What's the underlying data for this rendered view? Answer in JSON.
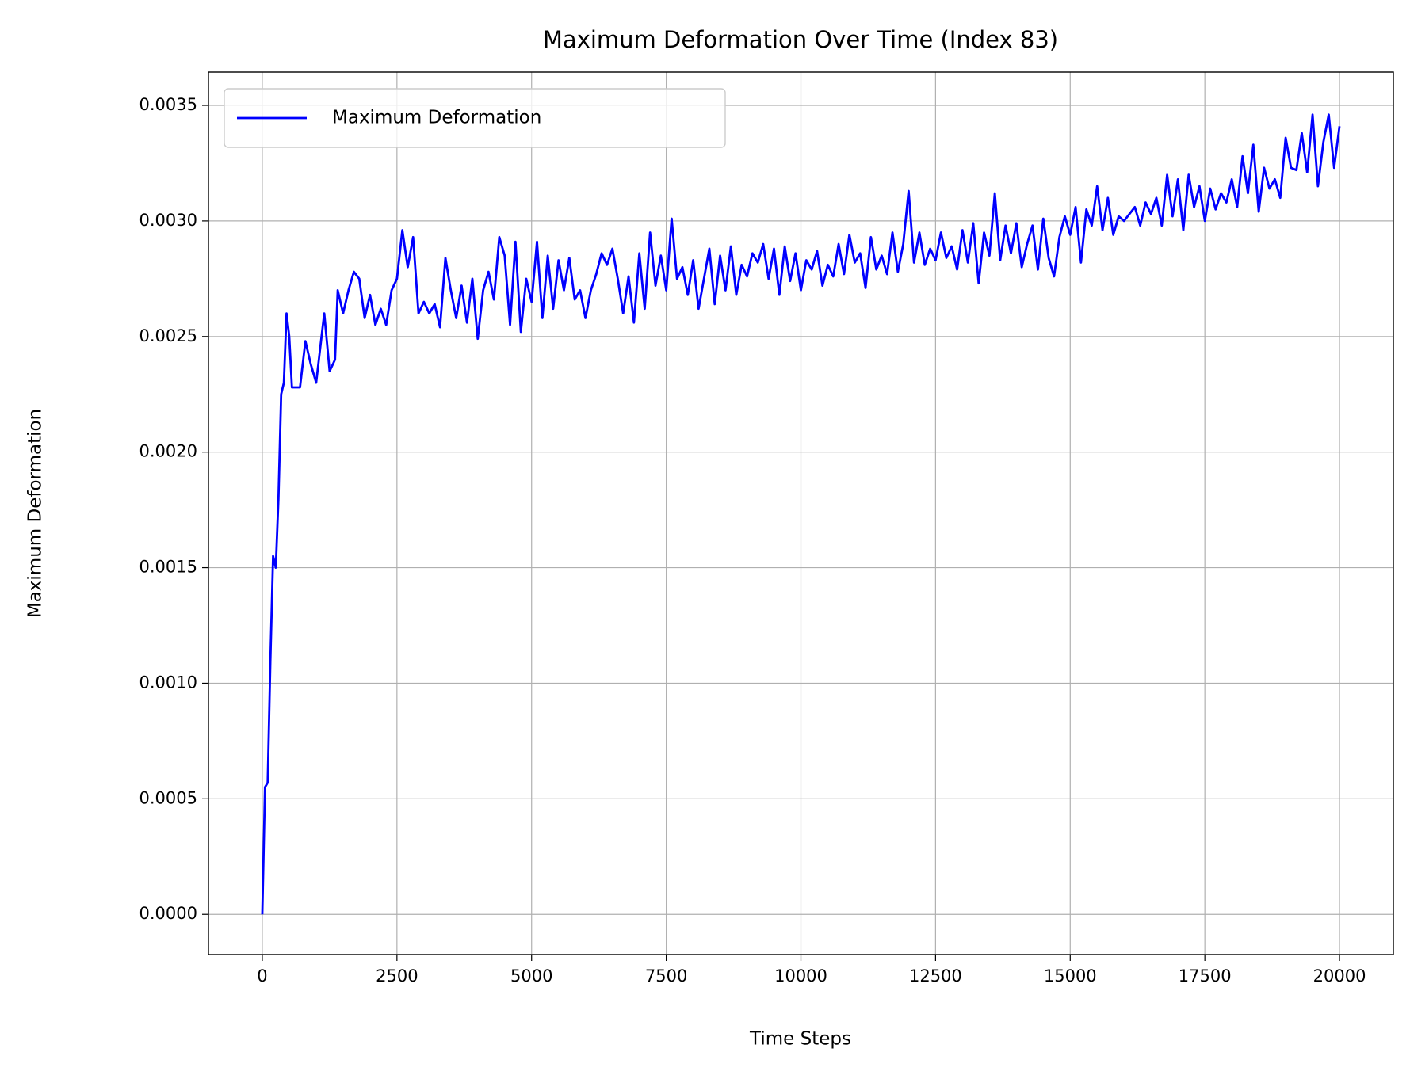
{
  "chart_data": {
    "type": "line",
    "title": "Maximum Deformation Over Time (Index 83)",
    "x_label": "Time Steps",
    "y_label": "Maximum Deformation",
    "xlim": [
      -1000,
      21000
    ],
    "ylim": [
      -0.000174,
      0.003644
    ],
    "xticks": [
      0,
      2500,
      5000,
      7500,
      10000,
      12500,
      15000,
      17500,
      20000
    ],
    "yticks": [
      {
        "value": 0,
        "label": "0.0000"
      },
      {
        "value": 0.0005,
        "label": "0.0005"
      },
      {
        "value": 0.001,
        "label": "0.0010"
      },
      {
        "value": 0.0015,
        "label": "0.0015"
      },
      {
        "value": 0.002,
        "label": "0.0020"
      },
      {
        "value": 0.0025,
        "label": "0.0025"
      },
      {
        "value": 0.003,
        "label": "0.0030"
      },
      {
        "value": 0.0035,
        "label": "0.0035"
      }
    ],
    "grid": true,
    "legend": "upper left",
    "x": [
      0,
      50,
      100,
      150,
      200,
      250,
      300,
      350,
      400,
      450,
      500,
      550,
      700,
      800,
      900,
      1000,
      1100,
      1150,
      1250,
      1350,
      1400,
      1500,
      1600,
      1700,
      1800,
      1900,
      2000,
      2100,
      2200,
      2300,
      2400,
      2500,
      2600,
      2700,
      2800,
      2900,
      3000,
      3100,
      3200,
      3300,
      3400,
      3500,
      3600,
      3700,
      3800,
      3900,
      4000,
      4100,
      4200,
      4300,
      4400,
      4500,
      4600,
      4700,
      4800,
      4900,
      5000,
      5100,
      5200,
      5300,
      5400,
      5500,
      5600,
      5700,
      5800,
      5900,
      6000,
      6100,
      6200,
      6300,
      6400,
      6500,
      6600,
      6700,
      6800,
      6900,
      7000,
      7100,
      7200,
      7300,
      7400,
      7500,
      7600,
      7700,
      7800,
      7900,
      8000,
      8100,
      8200,
      8300,
      8400,
      8500,
      8600,
      8700,
      8800,
      8900,
      9000,
      9100,
      9200,
      9300,
      9400,
      9500,
      9600,
      9700,
      9800,
      9900,
      10000,
      10100,
      10200,
      10300,
      10400,
      10500,
      10600,
      10700,
      10800,
      10900,
      11000,
      11100,
      11200,
      11300,
      11400,
      11500,
      11600,
      11700,
      11800,
      11900,
      12000,
      12100,
      12200,
      12300,
      12400,
      12500,
      12600,
      12700,
      12800,
      12900,
      13000,
      13100,
      13200,
      13300,
      13400,
      13500,
      13600,
      13700,
      13800,
      13900,
      14000,
      14100,
      14200,
      14300,
      14400,
      14500,
      14600,
      14700,
      14800,
      14900,
      15000,
      15100,
      15200,
      15300,
      15400,
      15500,
      15600,
      15700,
      15800,
      15900,
      16000,
      16100,
      16200,
      16300,
      16400,
      16500,
      16600,
      16700,
      16800,
      16900,
      17000,
      17100,
      17200,
      17300,
      17400,
      17500,
      17600,
      17700,
      17800,
      17900,
      18000,
      18100,
      18200,
      18300,
      18400,
      18500,
      18600,
      18700,
      18800,
      18900,
      19000,
      19100,
      19200,
      19300,
      19400,
      19500,
      19600,
      19700,
      19800,
      19900,
      20000
    ],
    "series": [
      {
        "name": "Maximum Deformation",
        "color": "#0000ff",
        "values": [
          0,
          0.00055,
          0.00057,
          0.0011,
          0.00155,
          0.0015,
          0.0018,
          0.00225,
          0.0023,
          0.0026,
          0.0025,
          0.00228,
          0.00228,
          0.00248,
          0.00238,
          0.0023,
          0.0025,
          0.0026,
          0.00235,
          0.0024,
          0.0027,
          0.0026,
          0.0027,
          0.00278,
          0.00275,
          0.00258,
          0.00268,
          0.00255,
          0.00262,
          0.00255,
          0.0027,
          0.00275,
          0.00296,
          0.0028,
          0.00293,
          0.0026,
          0.00265,
          0.0026,
          0.00264,
          0.00254,
          0.00284,
          0.0027,
          0.00258,
          0.00272,
          0.00256,
          0.00275,
          0.00249,
          0.0027,
          0.00278,
          0.00266,
          0.00293,
          0.00285,
          0.00255,
          0.00291,
          0.00252,
          0.00275,
          0.00265,
          0.00291,
          0.00258,
          0.00285,
          0.00262,
          0.00283,
          0.0027,
          0.00284,
          0.00266,
          0.0027,
          0.00258,
          0.0027,
          0.00277,
          0.00286,
          0.00281,
          0.00288,
          0.00275,
          0.0026,
          0.00276,
          0.00256,
          0.00286,
          0.00262,
          0.00295,
          0.00272,
          0.00285,
          0.0027,
          0.00301,
          0.00275,
          0.0028,
          0.00268,
          0.00283,
          0.00262,
          0.00275,
          0.00288,
          0.00264,
          0.00285,
          0.0027,
          0.00289,
          0.00268,
          0.00281,
          0.00276,
          0.00286,
          0.00282,
          0.0029,
          0.00275,
          0.00288,
          0.00268,
          0.00289,
          0.00274,
          0.00286,
          0.0027,
          0.00283,
          0.00279,
          0.00287,
          0.00272,
          0.00281,
          0.00276,
          0.0029,
          0.00277,
          0.00294,
          0.00282,
          0.00286,
          0.00271,
          0.00293,
          0.00279,
          0.00285,
          0.00277,
          0.00295,
          0.00278,
          0.0029,
          0.00313,
          0.00282,
          0.00295,
          0.00281,
          0.00288,
          0.00283,
          0.00295,
          0.00284,
          0.00289,
          0.00279,
          0.00296,
          0.00282,
          0.00299,
          0.00273,
          0.00295,
          0.00285,
          0.00312,
          0.00283,
          0.00298,
          0.00286,
          0.00299,
          0.0028,
          0.0029,
          0.00298,
          0.00279,
          0.00301,
          0.00284,
          0.00276,
          0.00293,
          0.00302,
          0.00294,
          0.00306,
          0.00282,
          0.00305,
          0.00298,
          0.00315,
          0.00296,
          0.0031,
          0.00294,
          0.00302,
          0.003,
          0.00303,
          0.00306,
          0.00298,
          0.00308,
          0.00303,
          0.0031,
          0.00298,
          0.0032,
          0.00302,
          0.00318,
          0.00296,
          0.0032,
          0.00306,
          0.00315,
          0.003,
          0.00314,
          0.00305,
          0.00312,
          0.00308,
          0.00318,
          0.00306,
          0.00328,
          0.00312,
          0.00333,
          0.00304,
          0.00323,
          0.00314,
          0.00318,
          0.0031,
          0.00336,
          0.00323,
          0.00322,
          0.00338,
          0.00321,
          0.00346,
          0.00315,
          0.00334,
          0.00346,
          0.00323,
          0.00341
        ]
      }
    ]
  }
}
